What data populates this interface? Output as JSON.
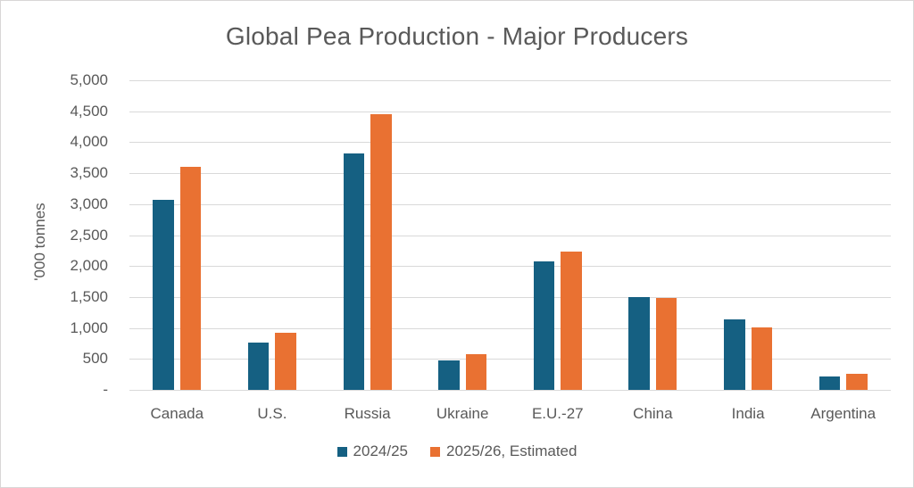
{
  "chart_data": {
    "type": "bar",
    "title": "Global Pea Production - Major Producers",
    "ylabel": "'000 tonnes",
    "categories": [
      "Canada",
      "U.S.",
      "Russia",
      "Ukraine",
      "E.U.-27",
      "China",
      "India",
      "Argentina"
    ],
    "series": [
      {
        "name": "2024/25",
        "color": "#156082",
        "values": [
          3070,
          760,
          3820,
          475,
          2075,
          1500,
          1140,
          210
        ]
      },
      {
        "name": "2025/26, Estimated",
        "color": "#E97132",
        "values": [
          3600,
          930,
          4450,
          580,
          2240,
          1480,
          1010,
          255
        ]
      }
    ],
    "ylim": [
      0,
      5000
    ],
    "ytick_step": 500,
    "ytick_labels": [
      "-",
      "500",
      "1,000",
      "1,500",
      "2,000",
      "2,500",
      "3,000",
      "3,500",
      "4,000",
      "4,500",
      "5,000"
    ],
    "grid": true,
    "legend_position": "bottom",
    "colors": {
      "gridline": "#D9D9D9",
      "axis": "#D9D9D9",
      "text": "#595959",
      "frame_border": "#D9D6D6",
      "background": "#FFFFFF"
    }
  }
}
